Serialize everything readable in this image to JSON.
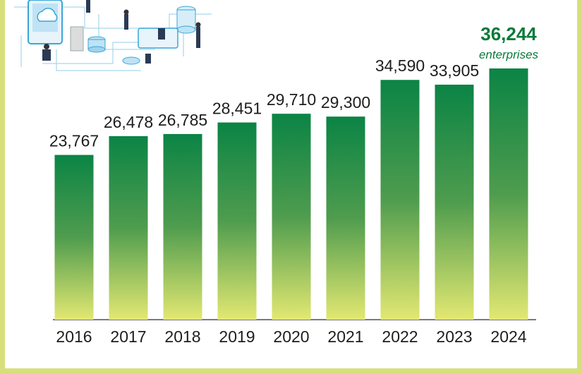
{
  "colors": {
    "bar_top": "#0b8445",
    "bar_mid": "#4f9c4e",
    "bar_bottom": "#e3e872",
    "frame": "#d6df7a",
    "highlight_text": "#0a7a3a",
    "illustration_accent": "#3aa6d8"
  },
  "illustration": {
    "icon": "cloud-data-network-illustration"
  },
  "chart_data": {
    "type": "bar",
    "categories": [
      "2016",
      "2017",
      "2018",
      "2019",
      "2020",
      "2021",
      "2022",
      "2023",
      "2024"
    ],
    "values": [
      23767,
      26478,
      26785,
      28451,
      29710,
      29300,
      34590,
      33905,
      36244
    ],
    "value_labels": [
      "23,767",
      "26,478",
      "26,785",
      "28,451",
      "29,710",
      "29,300",
      "34,590",
      "33,905",
      "36,244"
    ],
    "highlight": {
      "index": 8,
      "label": "36,244",
      "unit": "enterprises"
    },
    "title": "",
    "xlabel": "",
    "ylabel": "",
    "ylim": [
      0,
      37000
    ],
    "grid": false,
    "legend": "none"
  }
}
